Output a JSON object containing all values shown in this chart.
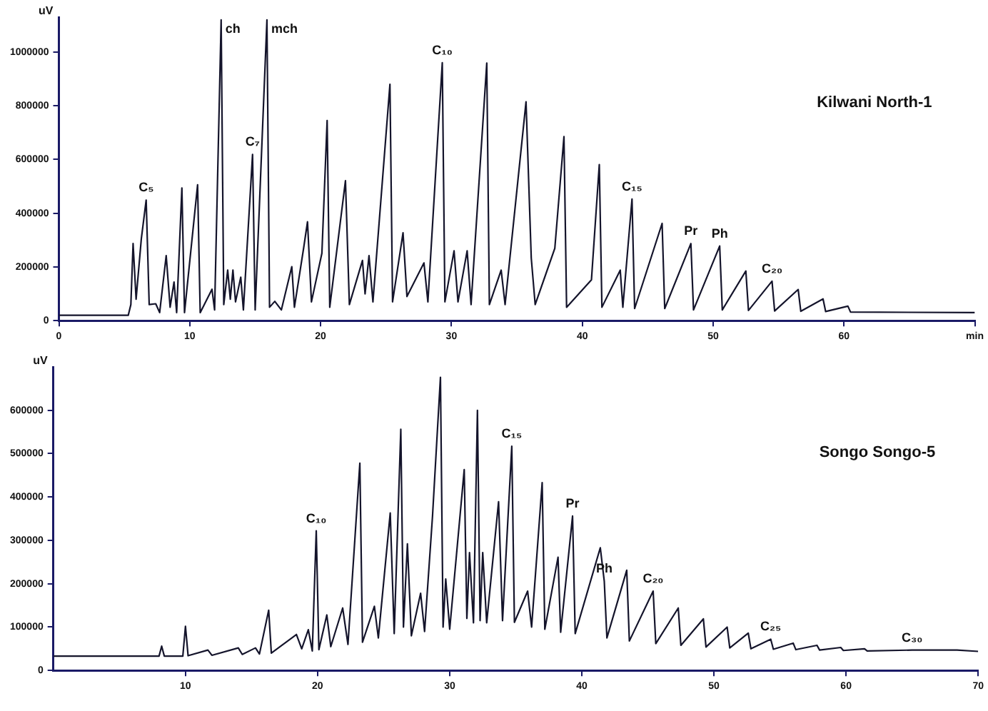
{
  "chart_data": [
    {
      "type": "line",
      "title": "Kilwani North-1",
      "ylabel": "uV",
      "color": "#14142b",
      "marker": "none",
      "line_style": "solid",
      "grid": false,
      "legend": false,
      "xlim": [
        0,
        70
      ],
      "xticks": [
        0,
        10,
        20,
        30,
        40,
        50,
        60,
        {
          "value": 70,
          "label": "min"
        }
      ],
      "ylim": [
        0,
        1130000
      ],
      "yticks": [
        0,
        200000,
        400000,
        600000,
        800000,
        1000000
      ],
      "x": [
        0,
        5.3,
        5.5,
        5.67,
        5.9,
        6.3,
        6.67,
        6.9,
        7.4,
        7.7,
        8.2,
        8.5,
        8.8,
        9.0,
        9.4,
        9.6,
        10.6,
        10.8,
        11.7,
        11.9,
        12.4,
        12.6,
        12.9,
        13.1,
        13.3,
        13.5,
        13.9,
        14.1,
        14.8,
        15.0,
        15.9,
        16.1,
        16.5,
        17.0,
        17.8,
        18.0,
        18.7,
        19.0,
        19.3,
        20.1,
        20.5,
        20.7,
        21.9,
        22.2,
        23.2,
        23.4,
        23.7,
        24.0,
        25.3,
        25.5,
        26.3,
        26.6,
        27.9,
        28.2,
        29.3,
        29.5,
        30.2,
        30.5,
        31.2,
        31.5,
        32.7,
        32.9,
        33.8,
        34.1,
        35.7,
        36.1,
        36.4,
        37.9,
        38.6,
        38.8,
        40.7,
        41.3,
        41.5,
        42.9,
        43.1,
        43.8,
        44.0,
        46.1,
        46.3,
        48.3,
        48.5,
        50.5,
        50.7,
        52.5,
        52.7,
        54.5,
        54.7,
        56.5,
        56.7,
        58.4,
        58.6,
        60.3,
        60.5,
        70
      ],
      "values": [
        20000,
        20000,
        60000,
        287000,
        80000,
        305000,
        449000,
        60000,
        63000,
        30000,
        242000,
        50000,
        144000,
        30000,
        494000,
        30000,
        506000,
        30000,
        117000,
        40000,
        1120000,
        60000,
        188000,
        80000,
        188000,
        70000,
        162000,
        40000,
        619000,
        40000,
        1120000,
        50000,
        72000,
        40000,
        201000,
        50000,
        269000,
        368000,
        70000,
        251000,
        745000,
        50000,
        521000,
        60000,
        224000,
        100000,
        242000,
        70000,
        880000,
        70000,
        327000,
        90000,
        215000,
        70000,
        960000,
        70000,
        260000,
        70000,
        260000,
        60000,
        959000,
        60000,
        188000,
        60000,
        815000,
        233000,
        60000,
        269000,
        685000,
        50000,
        152000,
        581000,
        50000,
        188000,
        50000,
        453000,
        45000,
        362000,
        45000,
        287000,
        40000,
        278000,
        40000,
        185000,
        38000,
        147000,
        36000,
        116000,
        35000,
        81000,
        34000,
        54000,
        32000,
        30000
      ],
      "annotations": [
        {
          "text": "C₅",
          "x": 6.67,
          "y": 449000
        },
        {
          "text": "ch",
          "x": 12.4,
          "y": 1120000
        },
        {
          "text": "C₇",
          "x": 14.8,
          "y": 619000
        },
        {
          "text": "mch",
          "x": 15.9,
          "y": 1120000
        },
        {
          "text": "C₁₀",
          "x": 29.3,
          "y": 960000
        },
        {
          "text": "C₁₅",
          "x": 43.8,
          "y": 453000
        },
        {
          "text": "Pr",
          "x": 48.3,
          "y": 287000
        },
        {
          "text": "Ph",
          "x": 50.5,
          "y": 278000
        },
        {
          "text": "C₂₀",
          "x": 54.5,
          "y": 147000
        }
      ]
    },
    {
      "type": "line",
      "title": "Songo Songo-5",
      "ylabel": "uV",
      "color": "#14142b",
      "marker": "none",
      "line_style": "solid",
      "grid": false,
      "legend": false,
      "xlim": [
        0,
        70
      ],
      "xticks": [
        10,
        20,
        30,
        40,
        50,
        60,
        70
      ],
      "ylim": [
        0,
        700000
      ],
      "yticks": [
        0,
        100000,
        200000,
        300000,
        400000,
        500000,
        600000
      ],
      "x": [
        0,
        8.0,
        8.2,
        8.4,
        9.8,
        10.0,
        10.2,
        11.7,
        12,
        14.0,
        14.3,
        15.3,
        15.6,
        16.3,
        16.5,
        18.4,
        18.8,
        19.3,
        19.6,
        19.9,
        20.1,
        20.7,
        21.0,
        21.9,
        22.3,
        23.2,
        23.4,
        24.3,
        24.6,
        25.5,
        25.8,
        26.3,
        26.5,
        26.8,
        27.1,
        27.8,
        28.1,
        28.7,
        29.3,
        29.5,
        29.7,
        30.0,
        31.1,
        31.3,
        31.5,
        31.8,
        32.1,
        32.3,
        32.5,
        32.8,
        33.7,
        34.0,
        34.7,
        34.9,
        35.9,
        36.2,
        37.0,
        37.2,
        38.2,
        38.4,
        39.3,
        39.5,
        41.4,
        41.7,
        41.9,
        43.4,
        43.6,
        45.4,
        45.6,
        47.3,
        47.5,
        49.2,
        49.4,
        51.0,
        51.2,
        52.6,
        52.8,
        54.3,
        54.5,
        56.0,
        56.2,
        57.8,
        58.0,
        59.6,
        59.8,
        61.4,
        61.6,
        65.0,
        68.4,
        70
      ],
      "values": [
        33000,
        33000,
        56000,
        33000,
        33000,
        102000,
        34000,
        47000,
        35000,
        52000,
        37000,
        52000,
        38000,
        139000,
        40000,
        83000,
        50000,
        94000,
        45000,
        322000,
        48000,
        128000,
        55000,
        144000,
        60000,
        478000,
        65000,
        148000,
        75000,
        363000,
        85000,
        556000,
        100000,
        292000,
        80000,
        178000,
        90000,
        356000,
        676000,
        100000,
        211000,
        95000,
        463000,
        120000,
        272000,
        110000,
        600000,
        115000,
        272000,
        110000,
        389000,
        115000,
        517000,
        111000,
        183000,
        100000,
        433000,
        95000,
        261000,
        88000,
        356000,
        85000,
        283000,
        206000,
        75000,
        231000,
        68000,
        183000,
        62000,
        144000,
        58000,
        119000,
        54000,
        100000,
        52000,
        86000,
        50000,
        72000,
        49000,
        63000,
        48000,
        58000,
        47000,
        53000,
        46000,
        50000,
        45000,
        47000,
        47000,
        44000
      ],
      "annotations": [
        {
          "text": "C₁₀",
          "x": 19.9,
          "y": 322000
        },
        {
          "text": "C₁₅",
          "x": 34.7,
          "y": 517000
        },
        {
          "text": "Pr",
          "x": 39.3,
          "y": 356000
        },
        {
          "text": "Ph",
          "x": 41.7,
          "y": 206000
        },
        {
          "text": "C₂₀",
          "x": 45.4,
          "y": 183000
        },
        {
          "text": "C₂₅",
          "x": 54.3,
          "y": 72000
        },
        {
          "text": "C₃₀",
          "x": 65.0,
          "y": 47000
        }
      ]
    }
  ]
}
